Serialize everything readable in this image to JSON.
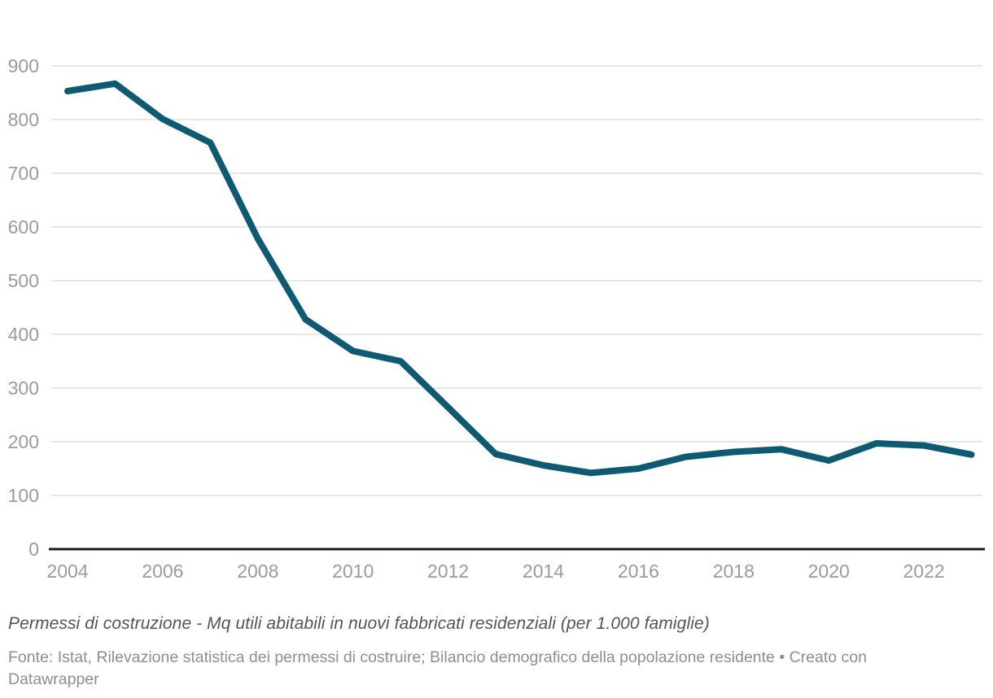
{
  "chart_data": {
    "type": "line",
    "title": "",
    "x": [
      2004,
      2005,
      2006,
      2007,
      2008,
      2009,
      2010,
      2011,
      2012,
      2013,
      2014,
      2015,
      2016,
      2017,
      2018,
      2019,
      2020,
      2021,
      2022,
      2023
    ],
    "values": [
      853,
      867,
      801,
      757,
      578,
      428,
      369,
      350,
      264,
      177,
      156,
      142,
      150,
      172,
      181,
      186,
      165,
      197,
      193,
      176
    ],
    "series_name": "Mq utili abitabili in nuovi fabbricati residenziali (per 1.000 famiglie)",
    "xlabel": "",
    "ylabel": "",
    "ylim": [
      0,
      900
    ],
    "y_ticks": [
      0,
      100,
      200,
      300,
      400,
      500,
      600,
      700,
      800,
      900
    ],
    "x_tick_labels": [
      2004,
      2006,
      2008,
      2010,
      2012,
      2014,
      2016,
      2018,
      2020,
      2022
    ],
    "grid": "horizontal gridlines on, vertical off",
    "legend": "none"
  },
  "colors": {
    "line": "#0f5a73",
    "grid": "#e7e7e7",
    "axis": "#1a1a1a",
    "tick_label": "#9b9b9b",
    "notes_text": "#545454",
    "source_text": "#8e8e8e",
    "background": "#ffffff"
  },
  "footer": {
    "notes": "Permessi di costruzione - Mq utili abitabili in nuovi fabbricati residenziali (per 1.000 famiglie)",
    "source_line1": "Fonte: Istat, Rilevazione statistica dei permessi di costruire; Bilancio demografico della popolazione residente • Creato con",
    "source_line2": "Datawrapper"
  }
}
